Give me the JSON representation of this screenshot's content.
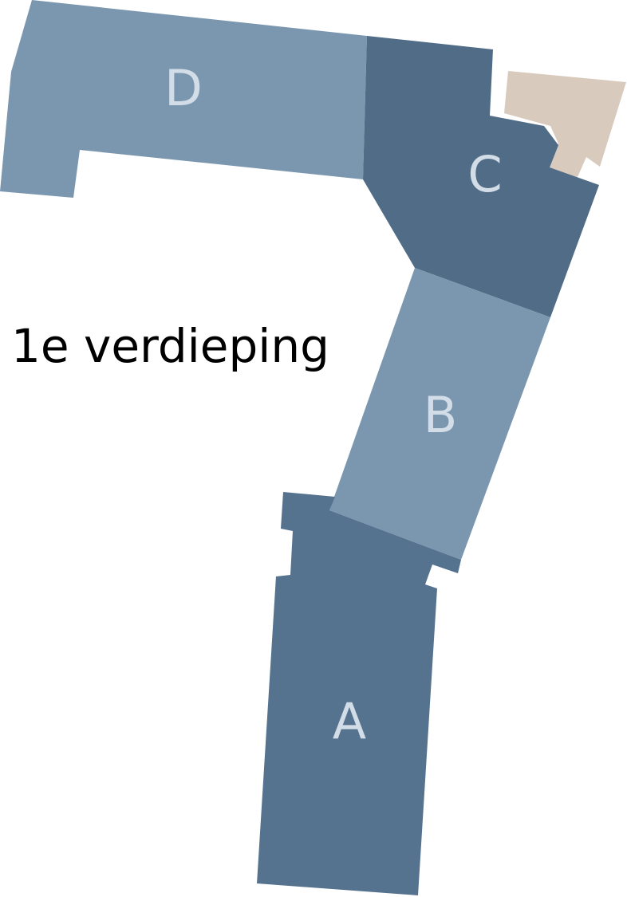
{
  "floor": {
    "title": "1e verdieping"
  },
  "wings": [
    {
      "id": "A",
      "label": "A",
      "color": "#55728f"
    },
    {
      "id": "B",
      "label": "B",
      "color": "#7b97b0"
    },
    {
      "id": "C",
      "label": "C",
      "color": "#516c86"
    },
    {
      "id": "D",
      "label": "D",
      "color": "#7b97b0"
    }
  ],
  "annex": {
    "color": "#d8cabd"
  },
  "label_color": "#d3dde8"
}
